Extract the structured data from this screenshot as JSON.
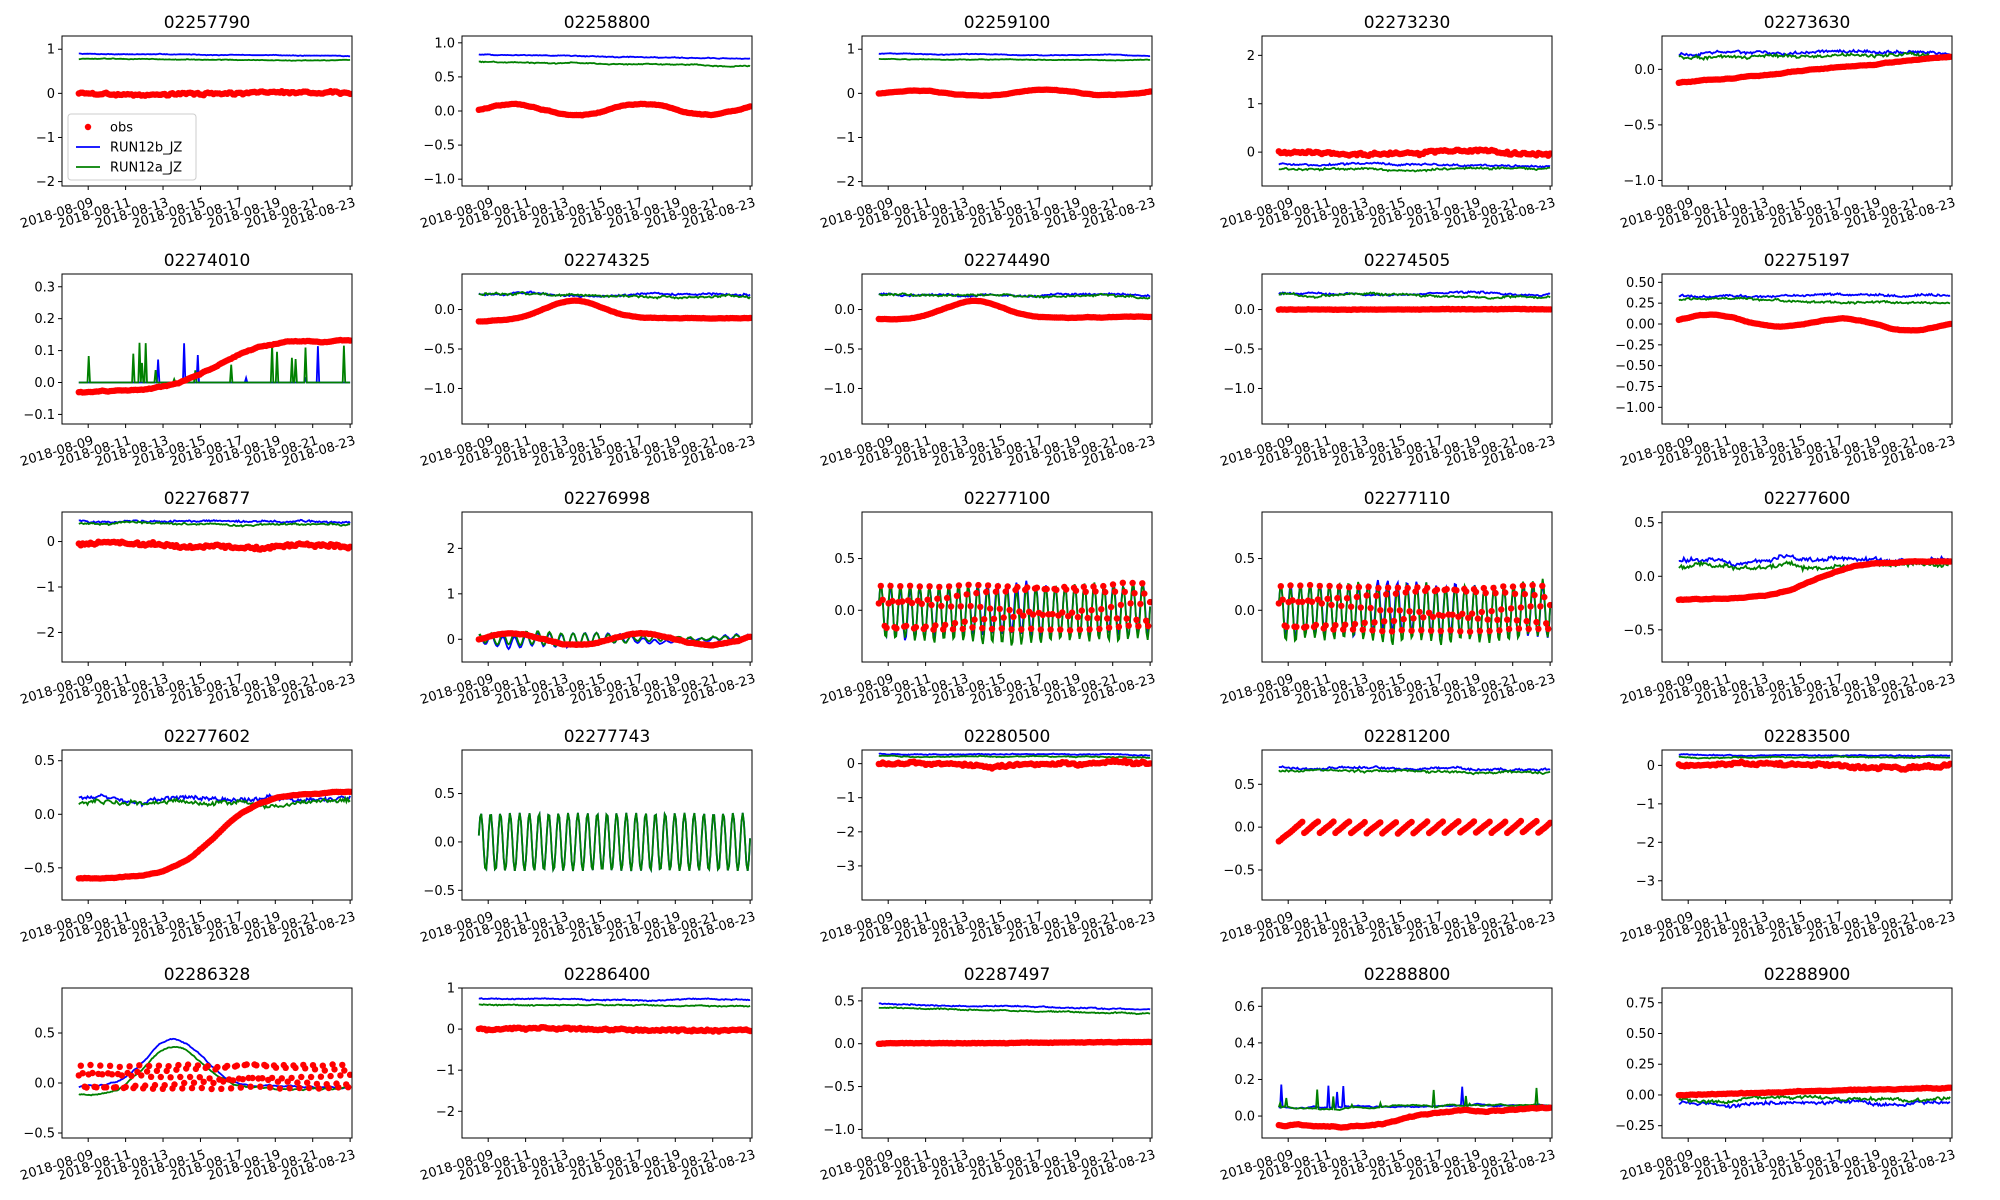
{
  "chart_data": {
    "type": "line",
    "x_ticks": [
      "2018-08-09",
      "2018-08-11",
      "2018-08-13",
      "2018-08-15",
      "2018-08-17",
      "2018-08-19",
      "2018-08-21",
      "2018-08-23"
    ],
    "x_range_days": [
      -1.4,
      14.1
    ],
    "legend": {
      "location": "lower-left of first panel",
      "entries": [
        {
          "key": "obs",
          "label": "obs",
          "color": "#ff0000",
          "marker": "point"
        },
        {
          "key": "b",
          "label": "RUN12b_JZ",
          "color": "#0000ff",
          "marker": "line"
        },
        {
          "key": "a",
          "label": "RUN12a_JZ",
          "color": "#008000",
          "marker": "line"
        }
      ]
    },
    "panels": [
      {
        "title": "02257790",
        "ylim": [
          -2.1,
          1.3
        ],
        "yticks": [
          -2,
          -1,
          0,
          1
        ],
        "b": {
          "kind": "flat",
          "y0": 0.9,
          "y1": 0.85,
          "noise": 0.01
        },
        "a": {
          "kind": "flat",
          "y0": 0.78,
          "y1": 0.74,
          "noise": 0.01
        },
        "obs": {
          "kind": "flat",
          "y0": 0.0,
          "y1": 0.0,
          "noise": 0.04
        }
      },
      {
        "title": "02258800",
        "ylim": [
          -1.1,
          1.1
        ],
        "yticks": [
          -1,
          -0.5,
          0,
          0.5,
          1
        ],
        "yticklabels": [
          "−1.0",
          "−0.5",
          "0.0",
          "0.5",
          "1.0"
        ],
        "b": {
          "kind": "flat",
          "y0": 0.83,
          "y1": 0.77,
          "noise": 0.01
        },
        "a": {
          "kind": "flat",
          "y0": 0.72,
          "y1": 0.66,
          "noise": 0.01
        },
        "obs": {
          "kind": "wavy",
          "y0": 0.02,
          "y1": 0.02,
          "amp": 0.08,
          "noise": 0.02
        }
      },
      {
        "title": "02259100",
        "ylim": [
          -2.1,
          1.3
        ],
        "yticks": [
          -2,
          -1,
          0,
          1
        ],
        "b": {
          "kind": "flat",
          "y0": 0.9,
          "y1": 0.85,
          "noise": 0.01
        },
        "a": {
          "kind": "flat",
          "y0": 0.78,
          "y1": 0.74,
          "noise": 0.01
        },
        "obs": {
          "kind": "wavy",
          "y0": 0.0,
          "y1": 0.02,
          "amp": 0.07,
          "noise": 0.02
        }
      },
      {
        "title": "02273230",
        "ylim": [
          -0.7,
          2.4
        ],
        "yticks": [
          0,
          1,
          2
        ],
        "b": {
          "kind": "flat",
          "y0": -0.25,
          "y1": -0.28,
          "noise": 0.03
        },
        "a": {
          "kind": "flat",
          "y0": -0.35,
          "y1": -0.37,
          "noise": 0.03
        },
        "obs": {
          "kind": "flat",
          "y0": 0.0,
          "y1": 0.0,
          "noise": 0.05
        }
      },
      {
        "title": "02273630",
        "ylim": [
          -1.05,
          0.3
        ],
        "yticks": [
          -1,
          -0.5,
          0
        ],
        "yticklabels": [
          "−1.0",
          "−0.5",
          "0.0"
        ],
        "b": {
          "kind": "flat",
          "y0": 0.14,
          "y1": 0.14,
          "noise": 0.02
        },
        "a": {
          "kind": "flat",
          "y0": 0.12,
          "y1": 0.12,
          "noise": 0.02
        },
        "obs": {
          "kind": "ramp",
          "y0": -0.12,
          "y1": 0.12,
          "noise": 0.01
        }
      },
      {
        "title": "02274010",
        "ylim": [
          -0.13,
          0.34
        ],
        "yticks": [
          -0.1,
          0,
          0.1,
          0.2,
          0.3
        ],
        "yticklabels": [
          "−0.1",
          "0.0",
          "0.1",
          "0.2",
          "0.3"
        ],
        "b": {
          "kind": "spiky",
          "y0": 0.0,
          "y1": 0.0,
          "noise": 0.0
        },
        "a": {
          "kind": "spiky",
          "y0": 0.0,
          "y1": 0.0,
          "noise": 0.0
        },
        "obs": {
          "kind": "rise",
          "y0": -0.03,
          "y1": 0.13,
          "noise": 0.005
        }
      },
      {
        "title": "02274325",
        "ylim": [
          -1.45,
          0.45
        ],
        "yticks": [
          -1,
          -0.5,
          0
        ],
        "yticklabels": [
          "−1.0",
          "−0.5",
          "0.0"
        ],
        "b": {
          "kind": "flat",
          "y0": 0.2,
          "y1": 0.18,
          "noise": 0.02
        },
        "a": {
          "kind": "flat",
          "y0": 0.19,
          "y1": 0.17,
          "noise": 0.02
        },
        "obs": {
          "kind": "hump",
          "y0": -0.15,
          "y1": -0.1,
          "amp": 0.25,
          "noise": 0.01
        }
      },
      {
        "title": "02274490",
        "ylim": [
          -1.45,
          0.45
        ],
        "yticks": [
          -1,
          -0.5,
          0
        ],
        "yticklabels": [
          "−1.0",
          "−0.5",
          "0.0"
        ],
        "b": {
          "kind": "flat",
          "y0": 0.2,
          "y1": 0.18,
          "noise": 0.02
        },
        "a": {
          "kind": "flat",
          "y0": 0.19,
          "y1": 0.17,
          "noise": 0.02
        },
        "obs": {
          "kind": "hump",
          "y0": -0.12,
          "y1": -0.1,
          "amp": 0.22,
          "noise": 0.01
        }
      },
      {
        "title": "02274505",
        "ylim": [
          -1.45,
          0.45
        ],
        "yticks": [
          -1,
          -0.5,
          0
        ],
        "yticklabels": [
          "−1.0",
          "−0.5",
          "0.0"
        ],
        "b": {
          "kind": "flat",
          "y0": 0.2,
          "y1": 0.18,
          "noise": 0.02
        },
        "a": {
          "kind": "flat",
          "y0": 0.19,
          "y1": 0.17,
          "noise": 0.02
        },
        "obs": {
          "kind": "flat",
          "y0": 0.0,
          "y1": 0.0,
          "noise": 0.005
        }
      },
      {
        "title": "02275197",
        "ylim": [
          -1.2,
          0.6
        ],
        "yticks": [
          -1,
          -0.75,
          -0.5,
          -0.25,
          0,
          0.25,
          0.5
        ],
        "yticklabels": [
          "−1.00",
          "−0.75",
          "−0.50",
          "−0.25",
          "0.00",
          "0.25",
          "0.50"
        ],
        "b": {
          "kind": "flat",
          "y0": 0.34,
          "y1": 0.34,
          "noise": 0.02
        },
        "a": {
          "kind": "flat",
          "y0": 0.29,
          "y1": 0.28,
          "noise": 0.02
        },
        "obs": {
          "kind": "wavy",
          "y0": 0.05,
          "y1": -0.02,
          "amp": 0.06,
          "noise": 0.01
        }
      },
      {
        "title": "02276877",
        "ylim": [
          -2.65,
          0.65
        ],
        "yticks": [
          -2,
          -1,
          0
        ],
        "b": {
          "kind": "flat",
          "y0": 0.45,
          "y1": 0.43,
          "noise": 0.03
        },
        "a": {
          "kind": "flat",
          "y0": 0.4,
          "y1": 0.38,
          "noise": 0.03
        },
        "obs": {
          "kind": "flat",
          "y0": -0.05,
          "y1": -0.05,
          "noise": 0.06
        }
      },
      {
        "title": "02276998",
        "ylim": [
          -0.5,
          2.8
        ],
        "yticks": [
          0,
          1,
          2
        ],
        "b": {
          "kind": "wiggle",
          "y0": 0.0,
          "y1": 0.0,
          "amp": 0.15,
          "noise": 0.05
        },
        "a": {
          "kind": "wiggle",
          "y0": 0.0,
          "y1": 0.0,
          "amp": 0.15,
          "noise": 0.05
        },
        "obs": {
          "kind": "wavy",
          "y0": 0.0,
          "y1": 0.0,
          "amp": 0.12,
          "noise": 0.03
        }
      },
      {
        "title": "02277100",
        "ylim": [
          -0.5,
          0.95
        ],
        "yticks": [
          0,
          0.5
        ],
        "yticklabels": [
          "0.0",
          "0.5"
        ],
        "b": {
          "kind": "tidal",
          "y0": 0.0,
          "y1": 0.0,
          "amp": 0.25,
          "noise": 0.02
        },
        "a": {
          "kind": "tidal",
          "y0": -0.02,
          "y1": -0.02,
          "amp": 0.27,
          "noise": 0.02
        },
        "obs": {
          "kind": "tidal",
          "y0": 0.02,
          "y1": 0.02,
          "amp": 0.22,
          "noise": 0.01
        }
      },
      {
        "title": "02277110",
        "ylim": [
          -0.5,
          0.95
        ],
        "yticks": [
          0,
          0.5
        ],
        "yticklabels": [
          "0.0",
          "0.5"
        ],
        "b": {
          "kind": "tidal",
          "y0": 0.0,
          "y1": 0.0,
          "amp": 0.25,
          "noise": 0.02
        },
        "a": {
          "kind": "tidal",
          "y0": -0.02,
          "y1": -0.02,
          "amp": 0.27,
          "noise": 0.02
        },
        "obs": {
          "kind": "tidal",
          "y0": 0.02,
          "y1": 0.02,
          "amp": 0.22,
          "noise": 0.01
        }
      },
      {
        "title": "02277600",
        "ylim": [
          -0.8,
          0.6
        ],
        "yticks": [
          -0.5,
          0,
          0.5
        ],
        "yticklabels": [
          "−0.5",
          "0.0",
          "0.5"
        ],
        "b": {
          "kind": "flat",
          "y0": 0.15,
          "y1": 0.15,
          "noise": 0.03
        },
        "a": {
          "kind": "flat",
          "y0": 0.08,
          "y1": 0.12,
          "noise": 0.03
        },
        "obs": {
          "kind": "rise",
          "y0": -0.22,
          "y1": 0.15,
          "noise": 0.01
        }
      },
      {
        "title": "02277602",
        "ylim": [
          -0.8,
          0.6
        ],
        "yticks": [
          -0.5,
          0,
          0.5
        ],
        "yticklabels": [
          "−0.5",
          "0.0",
          "0.5"
        ],
        "b": {
          "kind": "flat",
          "y0": 0.14,
          "y1": 0.14,
          "noise": 0.03
        },
        "a": {
          "kind": "flat",
          "y0": 0.1,
          "y1": 0.12,
          "noise": 0.03
        },
        "obs": {
          "kind": "rise",
          "y0": -0.6,
          "y1": 0.2,
          "noise": 0.01
        }
      },
      {
        "title": "02277743",
        "ylim": [
          -0.6,
          0.95
        ],
        "yticks": [
          -0.5,
          0,
          0.5
        ],
        "yticklabels": [
          "−0.5",
          "0.0",
          "0.5"
        ],
        "b": {
          "kind": "tidal",
          "y0": 0.0,
          "y1": 0.0,
          "amp": 0.3,
          "noise": 0.0
        },
        "a": {
          "kind": "tidal",
          "y0": 0.0,
          "y1": 0.0,
          "amp": 0.3,
          "noise": 0.0
        }
      },
      {
        "title": "02280500",
        "ylim": [
          -4.0,
          0.4
        ],
        "yticks": [
          -3,
          -2,
          -1,
          0
        ],
        "b": {
          "kind": "flat",
          "y0": 0.28,
          "y1": 0.25,
          "noise": 0.02
        },
        "a": {
          "kind": "flat",
          "y0": 0.22,
          "y1": 0.2,
          "noise": 0.02
        },
        "obs": {
          "kind": "flat",
          "y0": 0.0,
          "y1": 0.0,
          "noise": 0.06
        }
      },
      {
        "title": "02281200",
        "ylim": [
          -0.85,
          0.9
        ],
        "yticks": [
          -0.5,
          0,
          0.5
        ],
        "yticklabels": [
          "−0.5",
          "0.0",
          "0.5"
        ],
        "b": {
          "kind": "flat",
          "y0": 0.7,
          "y1": 0.67,
          "noise": 0.02
        },
        "a": {
          "kind": "flat",
          "y0": 0.66,
          "y1": 0.64,
          "noise": 0.02
        },
        "obs": {
          "kind": "saw",
          "y0": 0.0,
          "y1": 0.0,
          "amp": 0.15,
          "noise": 0.01
        }
      },
      {
        "title": "02283500",
        "ylim": [
          -3.5,
          0.4
        ],
        "yticks": [
          -3,
          -2,
          -1,
          0
        ],
        "b": {
          "kind": "flat",
          "y0": 0.28,
          "y1": 0.25,
          "noise": 0.02
        },
        "a": {
          "kind": "flat",
          "y0": 0.22,
          "y1": 0.2,
          "noise": 0.02
        },
        "obs": {
          "kind": "flat",
          "y0": 0.0,
          "y1": 0.0,
          "noise": 0.06
        }
      },
      {
        "title": "02286328",
        "ylim": [
          -0.55,
          0.95
        ],
        "yticks": [
          -0.5,
          0,
          0.5
        ],
        "yticklabels": [
          "−0.5",
          "0.0",
          "0.5"
        ],
        "b": {
          "kind": "hump",
          "y0": -0.05,
          "y1": -0.05,
          "amp": 0.5,
          "noise": 0.02
        },
        "a": {
          "kind": "hump",
          "y0": -0.12,
          "y1": -0.05,
          "amp": 0.45,
          "noise": 0.02
        },
        "obs": {
          "kind": "tidal",
          "y0": 0.05,
          "y1": 0.07,
          "amp": 0.12,
          "noise": 0.01
        }
      },
      {
        "title": "02286400",
        "ylim": [
          -2.65,
          1.0
        ],
        "yticks": [
          -2,
          -1,
          0,
          1
        ],
        "b": {
          "kind": "flat",
          "y0": 0.75,
          "y1": 0.7,
          "noise": 0.02
        },
        "a": {
          "kind": "flat",
          "y0": 0.6,
          "y1": 0.55,
          "noise": 0.02
        },
        "obs": {
          "kind": "flat",
          "y0": 0.0,
          "y1": 0.0,
          "noise": 0.04
        }
      },
      {
        "title": "02287497",
        "ylim": [
          -1.1,
          0.65
        ],
        "yticks": [
          -1,
          -0.5,
          0,
          0.5
        ],
        "yticklabels": [
          "−1.0",
          "−0.5",
          "0.0",
          "0.5"
        ],
        "b": {
          "kind": "flat",
          "y0": 0.47,
          "y1": 0.4,
          "noise": 0.01
        },
        "a": {
          "kind": "flat",
          "y0": 0.42,
          "y1": 0.35,
          "noise": 0.01
        },
        "obs": {
          "kind": "flat",
          "y0": 0.0,
          "y1": 0.02,
          "noise": 0.005
        }
      },
      {
        "title": "02288800",
        "ylim": [
          -0.12,
          0.7
        ],
        "yticks": [
          0,
          0.2,
          0.4,
          0.6
        ],
        "yticklabels": [
          "0.0",
          "0.2",
          "0.4",
          "0.6"
        ],
        "b": {
          "kind": "spiky",
          "y0": 0.05,
          "y1": 0.06,
          "noise": 0.01
        },
        "a": {
          "kind": "spiky",
          "y0": 0.05,
          "y1": 0.06,
          "noise": 0.01
        },
        "obs": {
          "kind": "rise",
          "y0": -0.05,
          "y1": 0.04,
          "noise": 0.01
        }
      },
      {
        "title": "02288900",
        "ylim": [
          -0.35,
          0.87
        ],
        "yticks": [
          -0.25,
          0,
          0.25,
          0.5,
          0.75
        ],
        "yticklabels": [
          "−0.25",
          "0.00",
          "0.25",
          "0.50",
          "0.75"
        ],
        "b": {
          "kind": "flat",
          "y0": -0.06,
          "y1": -0.08,
          "noise": 0.02
        },
        "a": {
          "kind": "flat",
          "y0": -0.03,
          "y1": -0.02,
          "noise": 0.02
        },
        "obs": {
          "kind": "flat",
          "y0": 0.0,
          "y1": 0.06,
          "noise": 0.005
        }
      }
    ]
  }
}
